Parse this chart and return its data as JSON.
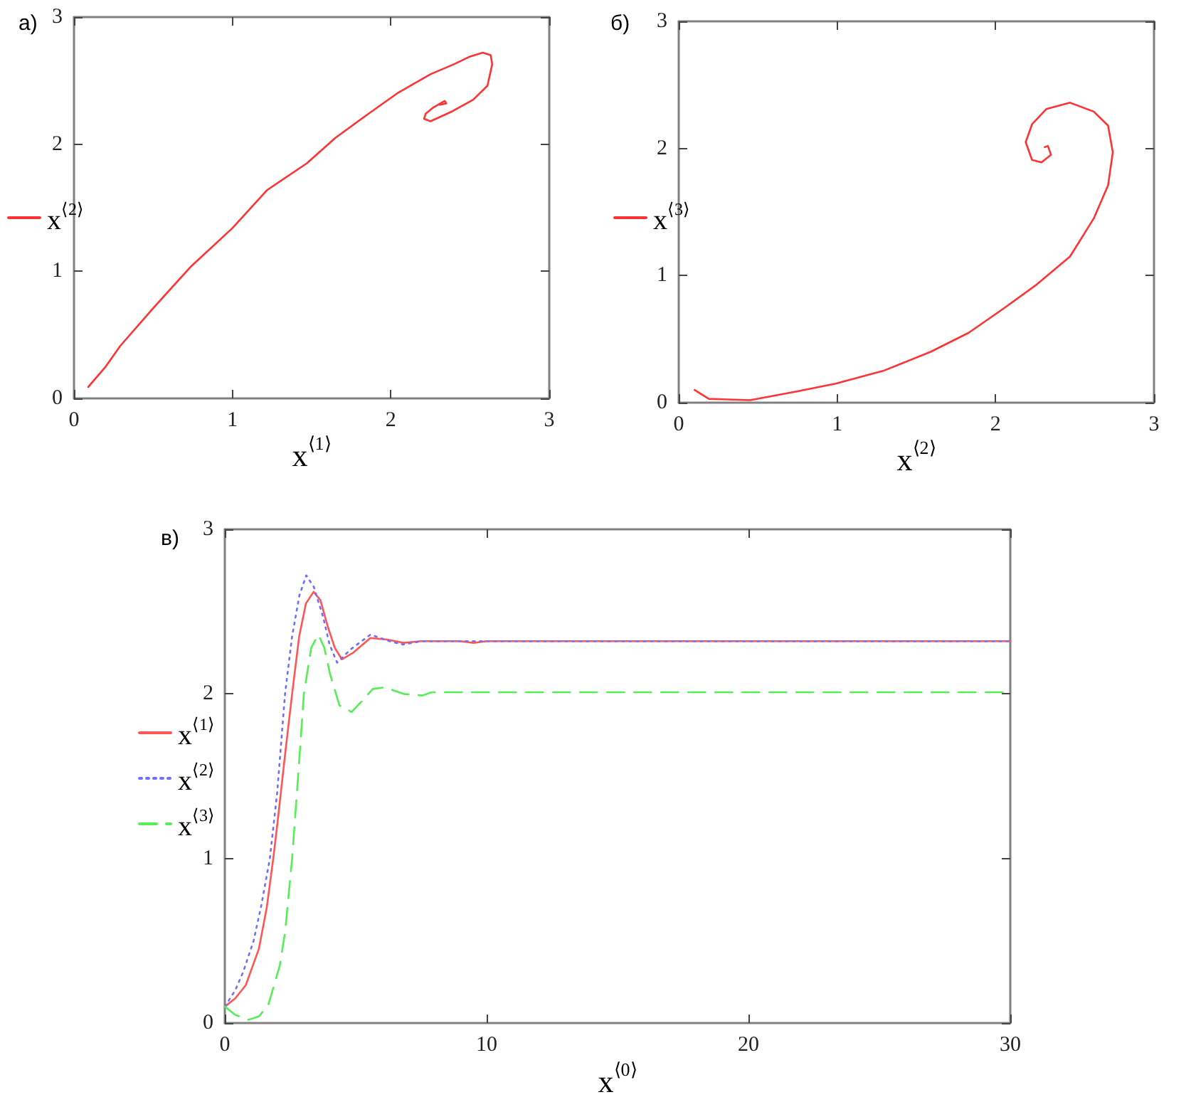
{
  "chart_data": [
    {
      "type": "line",
      "title": "а)",
      "xlabel": "x$^{⟨1⟩}$",
      "x": [
        0.09,
        0.2,
        0.29,
        0.5,
        0.74,
        1.0,
        1.22,
        1.47,
        1.65,
        1.86,
        2.04,
        2.25,
        2.4,
        2.5,
        2.58,
        2.63,
        2.64,
        2.61,
        2.52,
        2.39,
        2.25,
        2.21,
        2.22,
        2.27,
        2.34,
        2.35,
        2.31
      ],
      "series": [
        {
          "name": "x$^{⟨2⟩}$",
          "color": "#ff3333",
          "values": [
            0.09,
            0.25,
            0.41,
            0.71,
            1.04,
            1.34,
            1.64,
            1.85,
            2.05,
            2.24,
            2.4,
            2.55,
            2.63,
            2.69,
            2.72,
            2.7,
            2.63,
            2.46,
            2.35,
            2.26,
            2.18,
            2.2,
            2.24,
            2.29,
            2.34,
            2.32,
            2.31
          ]
        }
      ],
      "xlim": [
        0,
        3
      ],
      "ylim": [
        0,
        3
      ],
      "xticks": [
        0,
        1,
        2,
        3
      ],
      "yticks": [
        0,
        1,
        2,
        3
      ],
      "grid": false,
      "legend": "left",
      "marker": "none",
      "line_style": "solid"
    },
    {
      "type": "line",
      "title": "б)",
      "xlabel": "x$^{⟨2⟩}$",
      "x": [
        0.1,
        0.19,
        0.45,
        0.75,
        0.99,
        1.29,
        1.59,
        1.83,
        2.05,
        2.26,
        2.47,
        2.62,
        2.71,
        2.74,
        2.71,
        2.62,
        2.47,
        2.32,
        2.23,
        2.19,
        2.23,
        2.29,
        2.35,
        2.33,
        2.31
      ],
      "series": [
        {
          "name": "x$^{⟨3⟩}$",
          "color": "#ff3333",
          "values": [
            0.1,
            0.03,
            0.02,
            0.09,
            0.15,
            0.25,
            0.4,
            0.55,
            0.74,
            0.93,
            1.15,
            1.45,
            1.71,
            1.97,
            2.18,
            2.29,
            2.36,
            2.31,
            2.19,
            2.05,
            1.91,
            1.89,
            1.95,
            2.02,
            2.01
          ]
        }
      ],
      "xlim": [
        0,
        3
      ],
      "ylim": [
        0,
        3
      ],
      "xticks": [
        0,
        1,
        2,
        3
      ],
      "yticks": [
        0,
        1,
        2,
        3
      ],
      "grid": false,
      "legend": "left",
      "marker": "none",
      "line_style": "solid"
    },
    {
      "type": "line",
      "title": "в)",
      "xlabel": "x$^{⟨0⟩}$",
      "series": [
        {
          "name": "x$^{⟨1⟩}$",
          "color": "#ff5555",
          "line_style": "solid",
          "x": [
            0,
            0.4,
            0.8,
            1.3,
            1.6,
            1.85,
            2.0,
            2.3,
            2.57,
            2.84,
            3.1,
            3.39,
            3.65,
            3.93,
            4.2,
            4.47,
            4.9,
            5.56,
            6.2,
            6.83,
            7.5,
            9,
            9.5,
            10,
            30
          ],
          "values": [
            0.1,
            0.15,
            0.23,
            0.45,
            0.7,
            1.0,
            1.2,
            1.63,
            2.0,
            2.35,
            2.55,
            2.62,
            2.57,
            2.41,
            2.28,
            2.21,
            2.25,
            2.34,
            2.33,
            2.31,
            2.32,
            2.32,
            2.31,
            2.32,
            2.32
          ]
        },
        {
          "name": "x$^{⟨2⟩}$",
          "color": "#6f6fff",
          "line_style": "dotted",
          "x": [
            0,
            0.4,
            0.7,
            1.1,
            1.4,
            1.72,
            2.0,
            2.3,
            2.57,
            2.85,
            3.11,
            3.4,
            3.75,
            4.0,
            4.29,
            4.8,
            5.56,
            6.3,
            6.8,
            7.5,
            10,
            30
          ],
          "values": [
            0.1,
            0.2,
            0.31,
            0.5,
            0.72,
            1.0,
            1.4,
            2.0,
            2.35,
            2.6,
            2.72,
            2.65,
            2.47,
            2.3,
            2.19,
            2.27,
            2.36,
            2.32,
            2.3,
            2.32,
            2.32,
            2.32
          ]
        },
        {
          "name": "x$^{⟨3⟩}$",
          "color": "#55ee55",
          "line_style": "dashed",
          "x": [
            0,
            0.4,
            0.9,
            1.3,
            1.66,
            2.1,
            2.3,
            2.57,
            2.8,
            3.02,
            3.3,
            3.57,
            3.8,
            4.02,
            4.38,
            4.84,
            5.2,
            5.65,
            6.1,
            6.83,
            7.55,
            7.9,
            10,
            30
          ],
          "values": [
            0.1,
            0.05,
            0.02,
            0.04,
            0.11,
            0.35,
            0.55,
            1.0,
            1.5,
            2.0,
            2.28,
            2.36,
            2.28,
            2.12,
            1.93,
            1.89,
            1.95,
            2.03,
            2.04,
            2.0,
            1.99,
            2.01,
            2.01,
            2.01
          ]
        }
      ],
      "xlim": [
        0,
        30
      ],
      "ylim": [
        0,
        3
      ],
      "xticks": [
        0,
        10,
        20,
        30
      ],
      "yticks": [
        0,
        1,
        2,
        3
      ],
      "grid": false,
      "legend": "left",
      "marker": "none"
    }
  ]
}
